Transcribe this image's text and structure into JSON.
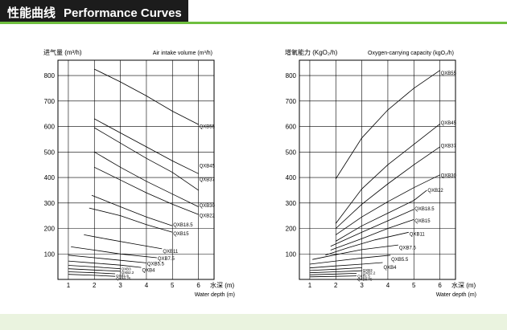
{
  "header": {
    "title_zh": "性能曲线",
    "title_en": "Performance Curves",
    "accent_color": "#6fbf3f"
  },
  "chart_data": [
    {
      "type": "line",
      "title": "",
      "ylabel_left": "进气量 (m³/h)",
      "ylabel_right": "Air intake volume (m³/h)",
      "xlabel_zh": "水深 (m)",
      "xlabel_en": "Water depth (m)",
      "xticks": [
        1,
        2,
        3,
        4,
        5,
        6
      ],
      "yticks": [
        100,
        200,
        300,
        400,
        500,
        600,
        700,
        800
      ],
      "xlim": [
        0.6,
        6.6
      ],
      "ylim": [
        0,
        860
      ],
      "grid": true,
      "series": [
        {
          "name": "QXB55",
          "x": [
            2,
            3,
            4,
            5,
            6
          ],
          "values": [
            825,
            775,
            720,
            660,
            608
          ],
          "label_y": 600
        },
        {
          "name": "QXB45",
          "x": [
            2,
            3,
            4,
            5,
            6
          ],
          "values": [
            630,
            575,
            520,
            465,
            415
          ],
          "label_y": 446
        },
        {
          "name": "QXB37",
          "x": [
            2,
            3,
            4,
            5,
            6
          ],
          "values": [
            595,
            535,
            475,
            420,
            350
          ],
          "label_y": 392
        },
        {
          "name": "QXB30",
          "x": [
            2,
            3,
            4,
            5,
            6
          ],
          "values": [
            500,
            440,
            385,
            335,
            285
          ],
          "label_y": 290
        },
        {
          "name": "QXB22",
          "x": [
            2,
            3,
            4,
            5,
            6
          ],
          "values": [
            440,
            390,
            340,
            295,
            255
          ],
          "label_y": 250
        },
        {
          "name": "QXB18.5",
          "x": [
            1.9,
            3,
            4,
            5
          ],
          "values": [
            330,
            285,
            245,
            210
          ],
          "label_y": 215
        },
        {
          "name": "QXB15",
          "x": [
            1.8,
            3,
            4,
            5
          ],
          "values": [
            280,
            250,
            215,
            185
          ],
          "label_y": 180
        },
        {
          "name": "QXB11",
          "x": [
            1.6,
            2.5,
            3.5,
            4.6
          ],
          "values": [
            175,
            158,
            140,
            120
          ],
          "label_y": 110
        },
        {
          "name": "QXB7.5",
          "x": [
            1.1,
            2,
            3,
            4.4
          ],
          "values": [
            128,
            115,
            100,
            85
          ],
          "label_y": 82
        },
        {
          "name": "QXB5.5",
          "x": [
            1,
            2,
            3,
            4
          ],
          "values": [
            95,
            85,
            75,
            65
          ],
          "label_y": 62
        },
        {
          "name": "QXB4",
          "x": [
            1,
            2,
            3,
            3.8
          ],
          "values": [
            72,
            64,
            56,
            47
          ],
          "label_y": 36
        },
        {
          "name": "QXB3",
          "x": [
            1,
            2,
            3
          ],
          "values": [
            55,
            49,
            42
          ],
          "label_y": 42
        },
        {
          "name": "QXB2.2",
          "x": [
            1,
            2,
            3
          ],
          "values": [
            42,
            37,
            32
          ],
          "label_y": 28
        },
        {
          "name": "QXB1.5",
          "x": [
            1,
            2,
            2.8
          ],
          "values": [
            30,
            26,
            22
          ],
          "label_y": 16
        },
        {
          "name": "QXB0.75",
          "x": [
            1,
            2,
            2.8
          ],
          "values": [
            20,
            16,
            12
          ],
          "label_y": 4
        }
      ]
    },
    {
      "type": "line",
      "title": "",
      "ylabel_left": "增氧能力 (KgO₂/h)",
      "ylabel_right": "Oxygen-carrying capacity (kgO₂/h)",
      "xlabel_zh": "水深 (m)",
      "xlabel_en": "Water depth (m)",
      "xticks": [
        1,
        2,
        3,
        4,
        5,
        6
      ],
      "yticks": [
        100,
        200,
        300,
        400,
        500,
        600,
        700,
        800
      ],
      "xlim": [
        0.6,
        6.6
      ],
      "ylim": [
        0,
        860
      ],
      "grid": true,
      "series": [
        {
          "name": "QXB55",
          "x": [
            2,
            3,
            4,
            5,
            6
          ],
          "values": [
            395,
            555,
            665,
            750,
            820
          ],
          "label_y": 810
        },
        {
          "name": "QXB45",
          "x": [
            2,
            3,
            4,
            5,
            6
          ],
          "values": [
            220,
            355,
            450,
            530,
            610
          ],
          "label_y": 615
        },
        {
          "name": "QXB37",
          "x": [
            2,
            3,
            4,
            5,
            6
          ],
          "values": [
            200,
            295,
            375,
            450,
            520
          ],
          "label_y": 525
        },
        {
          "name": "QXB30",
          "x": [
            2,
            3,
            4,
            5,
            6
          ],
          "values": [
            175,
            245,
            305,
            360,
            410
          ],
          "label_y": 408
        },
        {
          "name": "QXB22",
          "x": [
            2,
            3,
            4,
            5,
            5.5
          ],
          "values": [
            150,
            210,
            260,
            310,
            350
          ],
          "label_y": 350
        },
        {
          "name": "QXB18.5",
          "x": [
            1.8,
            3,
            4,
            5
          ],
          "values": [
            130,
            185,
            230,
            275
          ],
          "label_y": 278
        },
        {
          "name": "QXB15",
          "x": [
            1.8,
            3,
            4,
            5
          ],
          "values": [
            115,
            160,
            200,
            235
          ],
          "label_y": 230
        },
        {
          "name": "QXB11",
          "x": [
            1.6,
            2.5,
            3.5,
            4.8
          ],
          "values": [
            95,
            125,
            155,
            185
          ],
          "label_y": 178
        },
        {
          "name": "QXB7.5",
          "x": [
            1.1,
            2,
            3,
            4.4
          ],
          "values": [
            78,
            97,
            117,
            135
          ],
          "label_y": 125
        },
        {
          "name": "QXB5.5",
          "x": [
            1,
            2,
            3,
            4.1
          ],
          "values": [
            60,
            72,
            84,
            95
          ],
          "label_y": 78
        },
        {
          "name": "QXB4",
          "x": [
            1,
            2,
            3,
            3.8
          ],
          "values": [
            45,
            53,
            60,
            66
          ],
          "label_y": 48
        },
        {
          "name": "QXB3",
          "x": [
            1,
            2,
            3
          ],
          "values": [
            35,
            40,
            46
          ],
          "label_y": 38
        },
        {
          "name": "QXB2.2",
          "x": [
            1,
            2,
            3
          ],
          "values": [
            26,
            30,
            34
          ],
          "label_y": 26
        },
        {
          "name": "QXB1.5",
          "x": [
            1,
            2,
            2.8
          ],
          "values": [
            18,
            21,
            24
          ],
          "label_y": 14
        },
        {
          "name": "QXB0.75",
          "x": [
            1,
            2,
            2.8
          ],
          "values": [
            10,
            12,
            14
          ],
          "label_y": 2
        }
      ]
    }
  ]
}
